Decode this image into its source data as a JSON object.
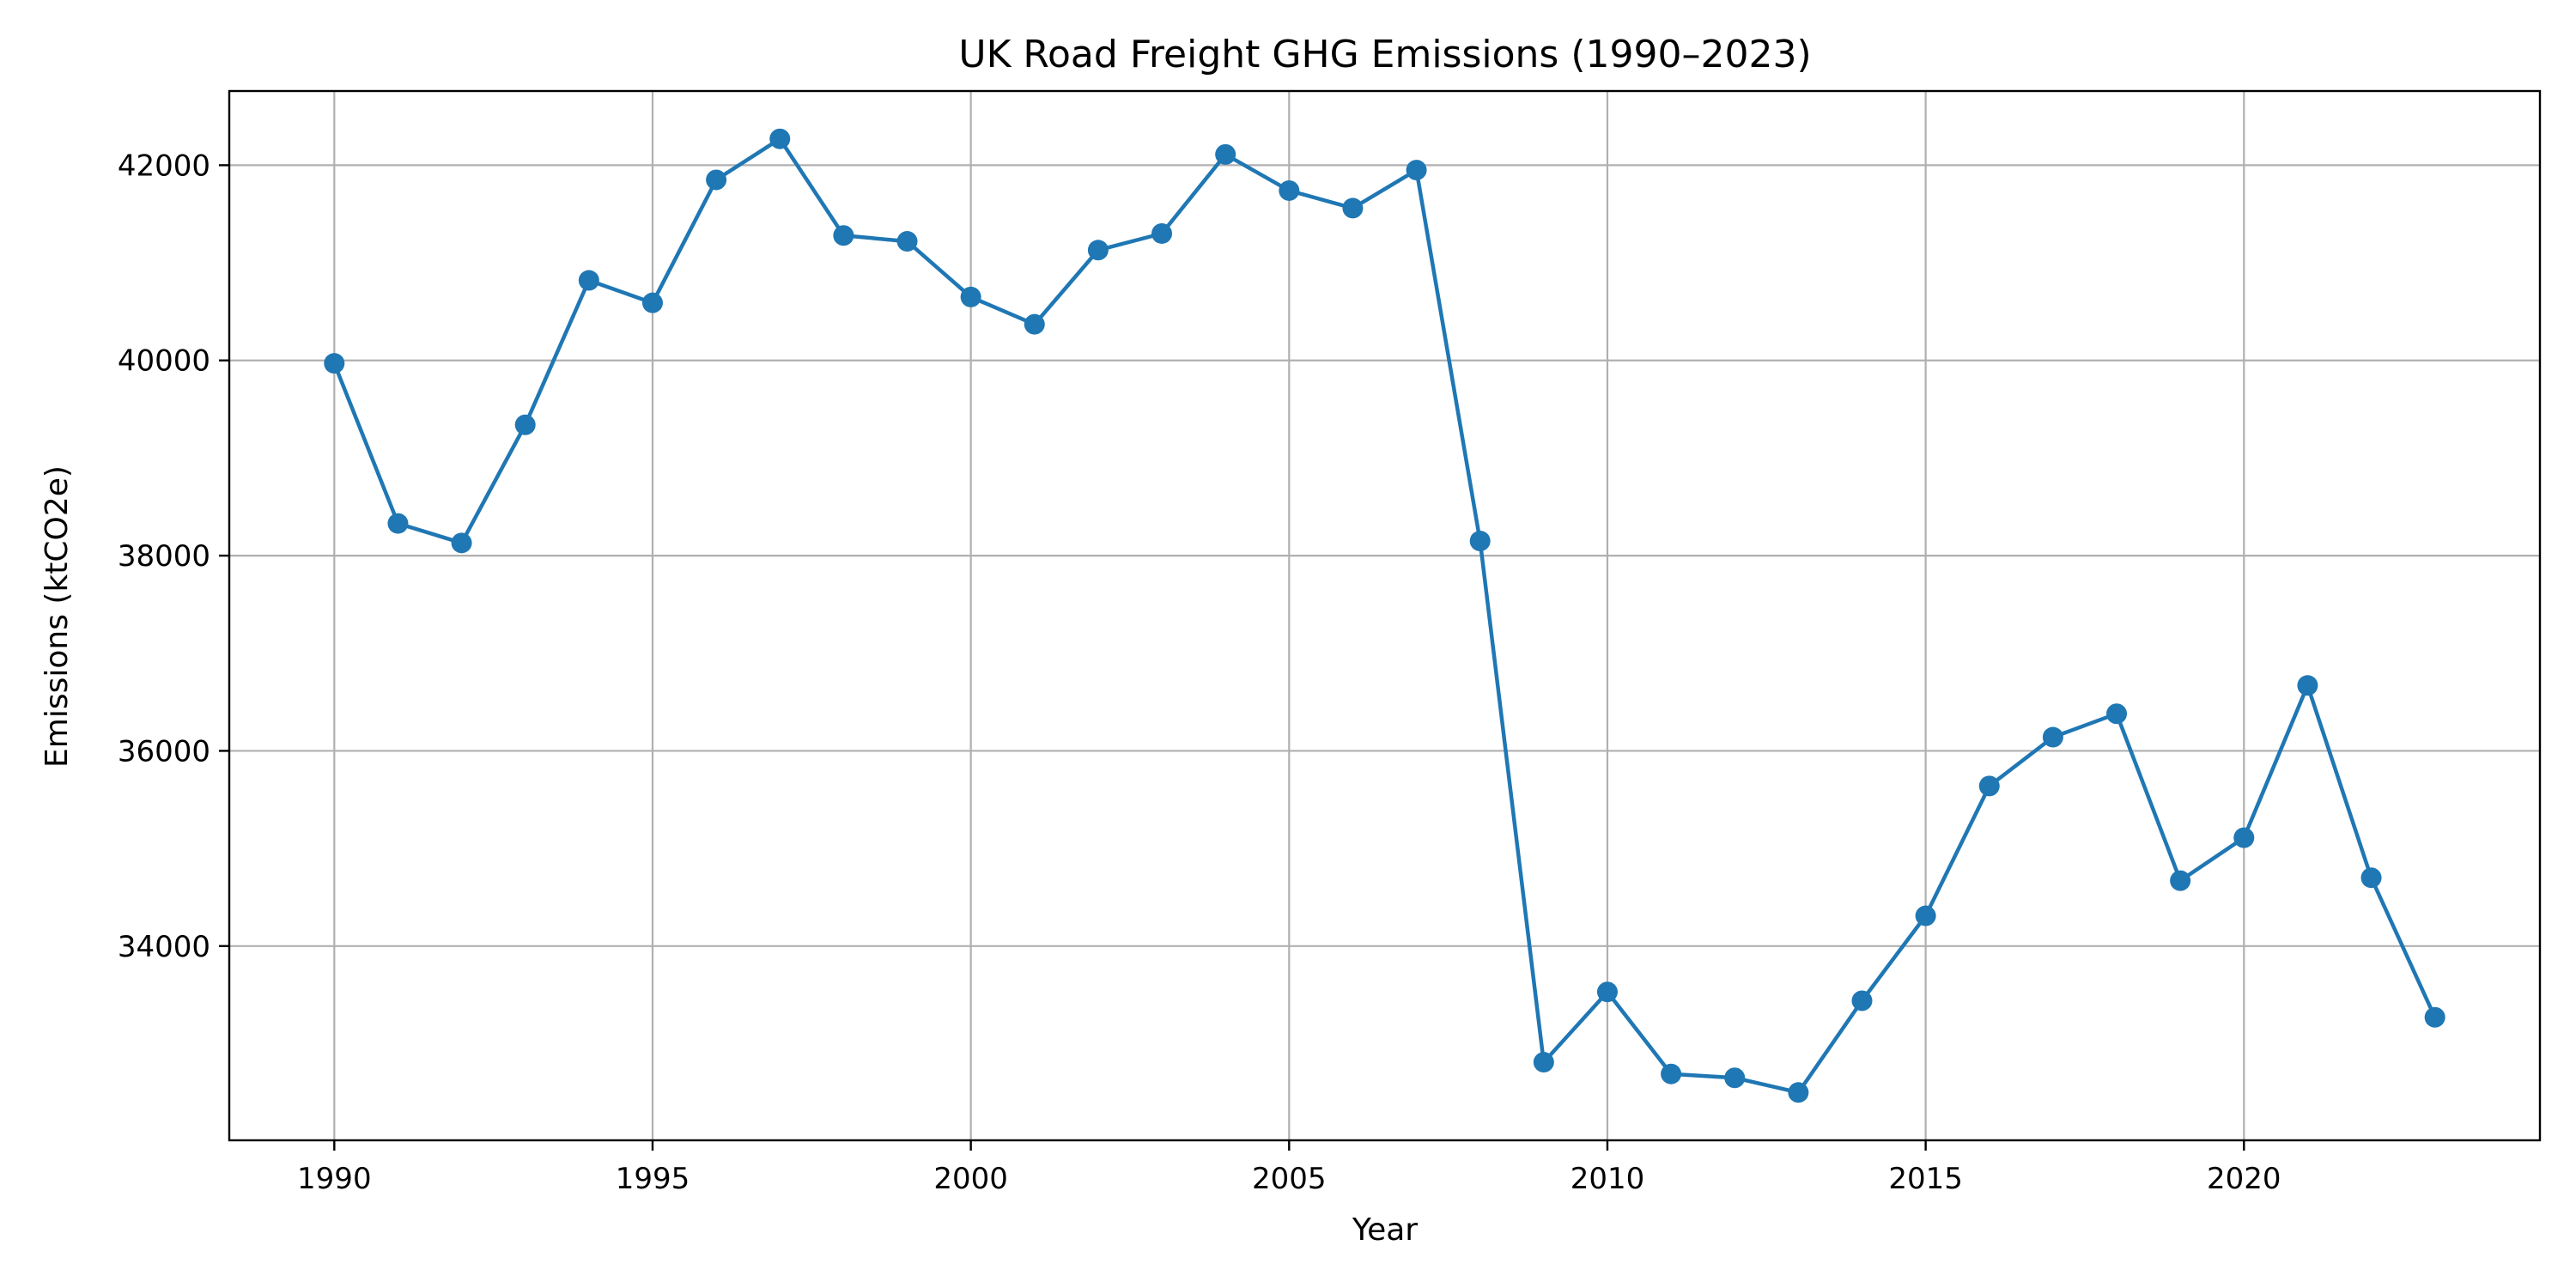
{
  "chart_data": {
    "type": "line",
    "title": "UK Road Freight GHG Emissions (1990–2023)",
    "xlabel": "Year",
    "ylabel": "Emissions (ktCO2e)",
    "x": [
      1990,
      1991,
      1992,
      1993,
      1994,
      1995,
      1996,
      1997,
      1998,
      1999,
      2000,
      2001,
      2002,
      2003,
      2004,
      2005,
      2006,
      2007,
      2008,
      2009,
      2010,
      2011,
      2012,
      2013,
      2014,
      2015,
      2016,
      2017,
      2018,
      2019,
      2020,
      2021,
      2022,
      2023
    ],
    "series": [
      {
        "values": [
          39970,
          38330,
          38130,
          39340,
          40820,
          40590,
          41850,
          42270,
          41280,
          41220,
          40650,
          40370,
          41130,
          41300,
          42110,
          41740,
          41560,
          41950,
          38150,
          32810,
          33530,
          32690,
          32650,
          32500,
          33440,
          34310,
          35640,
          36140,
          36380,
          34670,
          35110,
          36670,
          34700,
          33270
        ],
        "color": "#1f77b4"
      }
    ],
    "xlim": [
      1988.35,
      2024.65
    ],
    "ylim": [
      32010,
      42760
    ],
    "xticks": [
      "1990",
      "1995",
      "2000",
      "2005",
      "2010",
      "2015",
      "2020"
    ],
    "yticks": [
      "34000",
      "36000",
      "38000",
      "40000",
      "42000"
    ],
    "grid": true,
    "legend": "none"
  }
}
